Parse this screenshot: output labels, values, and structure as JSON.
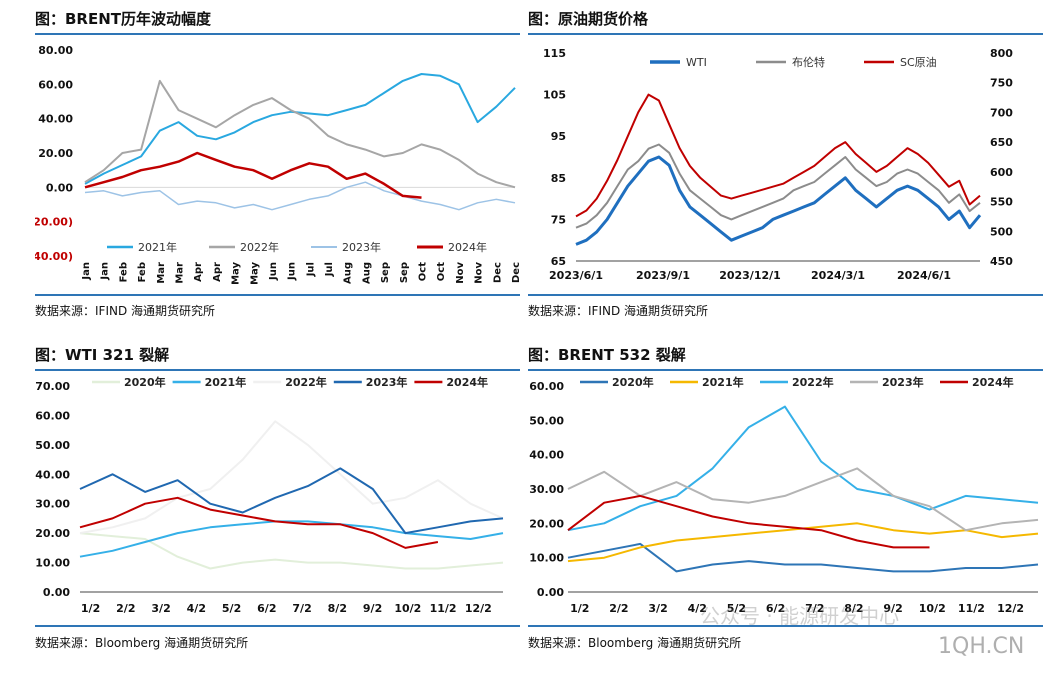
{
  "panels": [
    {
      "title": "图：BRENT历年波动幅度",
      "source": "数据来源：IFIND    海通期货研究所",
      "chart_data": {
        "type": "line",
        "ylim": [
          -40,
          80
        ],
        "y_ticks": [
          "80.00",
          "60.00",
          "40.00",
          "20.00",
          "0.00",
          "(20.00)",
          "(40.00)"
        ],
        "negative_tick_color": "#c00000",
        "x_ticks": [
          "Jan",
          "Jan",
          "Feb",
          "Feb",
          "Mar",
          "Mar",
          "Apr",
          "Apr",
          "May",
          "May",
          "Jun",
          "Jun",
          "Jul",
          "Jul",
          "Aug",
          "Aug",
          "Sep",
          "Sep",
          "Oct",
          "Oct",
          "Nov",
          "Nov",
          "Dec",
          "Dec"
        ],
        "legend_position": "bottom-inside",
        "series": [
          {
            "name": "2021年",
            "color": "#29a8e0",
            "width": 2,
            "values": [
              2,
              8,
              13,
              18,
              33,
              38,
              30,
              28,
              32,
              38,
              42,
              44,
              43,
              42,
              45,
              48,
              55,
              62,
              66,
              65,
              60,
              38,
              47,
              58
            ]
          },
          {
            "name": "2022年",
            "color": "#a6a6a6",
            "width": 2,
            "values": [
              3,
              10,
              20,
              22,
              62,
              45,
              40,
              35,
              42,
              48,
              52,
              45,
              40,
              30,
              25,
              22,
              18,
              20,
              25,
              22,
              16,
              8,
              3,
              0
            ]
          },
          {
            "name": "2023年",
            "color": "#9dc3e6",
            "width": 1.5,
            "values": [
              -3,
              -2,
              -5,
              -3,
              -2,
              -10,
              -8,
              -9,
              -12,
              -10,
              -13,
              -10,
              -7,
              -5,
              0,
              3,
              -2,
              -5,
              -8,
              -10,
              -13,
              -9,
              -7,
              -9
            ]
          },
          {
            "name": "2024年",
            "color": "#c00000",
            "width": 2.5,
            "values": [
              0,
              3,
              6,
              10,
              12,
              15,
              20,
              16,
              12,
              10,
              5,
              10,
              14,
              12,
              5,
              8,
              2,
              -5,
              -6
            ]
          }
        ]
      }
    },
    {
      "title": "图：原油期货价格",
      "source": "数据来源：IFIND    海通期货研究所",
      "chart_data": {
        "type": "line",
        "x_ticks": [
          "2023/6/1",
          "2023/9/1",
          "2023/12/1",
          "2024/3/1",
          "2024/6/1"
        ],
        "ylim_left": [
          65,
          115
        ],
        "y_ticks_left": [
          "115",
          "105",
          "95",
          "85",
          "75",
          "65"
        ],
        "ylim_right": [
          450,
          800
        ],
        "y_ticks_right": [
          "800",
          "750",
          "700",
          "650",
          "600",
          "550",
          "500",
          "450"
        ],
        "legend_position": "top",
        "series": [
          {
            "name": "WTI",
            "color": "#1f6fbf",
            "width": 3,
            "axis": "left",
            "values": [
              69,
              70,
              72,
              75,
              79,
              83,
              86,
              89,
              90,
              88,
              82,
              78,
              76,
              74,
              72,
              70,
              71,
              72,
              73,
              75,
              76,
              77,
              78,
              79,
              81,
              83,
              85,
              82,
              80,
              78,
              80,
              82,
              83,
              82,
              80,
              78,
              75,
              77,
              73,
              76
            ]
          },
          {
            "name": "布伦特",
            "color": "#8c8c8c",
            "width": 2,
            "axis": "left",
            "values": [
              73,
              74,
              76,
              79,
              83,
              87,
              89,
              92,
              93,
              91,
              86,
              82,
              80,
              78,
              76,
              75,
              76,
              77,
              78,
              79,
              80,
              82,
              83,
              84,
              86,
              88,
              90,
              87,
              85,
              83,
              84,
              86,
              87,
              86,
              84,
              82,
              79,
              81,
              77,
              79
            ]
          },
          {
            "name": "SC原油",
            "color": "#c00000",
            "width": 2,
            "axis": "right",
            "values": [
              525,
              535,
              555,
              585,
              620,
              660,
              700,
              730,
              720,
              680,
              640,
              610,
              590,
              575,
              560,
              555,
              560,
              565,
              570,
              575,
              580,
              590,
              600,
              610,
              625,
              640,
              650,
              630,
              615,
              600,
              610,
              625,
              640,
              630,
              615,
              595,
              575,
              585,
              545,
              560
            ]
          }
        ]
      }
    },
    {
      "title": "图：WTI 321 裂解",
      "source": "数据来源：Bloomberg    海通期货研究所",
      "chart_data": {
        "type": "line",
        "ylim": [
          0,
          70
        ],
        "y_ticks": [
          "70.00",
          "60.00",
          "50.00",
          "40.00",
          "30.00",
          "20.00",
          "10.00",
          "0.00"
        ],
        "x_ticks": [
          "1/2",
          "2/2",
          "3/2",
          "4/2",
          "5/2",
          "6/2",
          "7/2",
          "8/2",
          "9/2",
          "10/2",
          "11/2",
          "12/2"
        ],
        "legend_position": "top",
        "series": [
          {
            "name": "2020年",
            "color": "#e2efda",
            "width": 2,
            "values": [
              20,
              19,
              18,
              12,
              8,
              10,
              11,
              10,
              10,
              9,
              8,
              8,
              9,
              10
            ]
          },
          {
            "name": "2021年",
            "color": "#35b0e8",
            "width": 2,
            "values": [
              12,
              14,
              17,
              20,
              22,
              23,
              24,
              24,
              23,
              22,
              20,
              19,
              18,
              20
            ]
          },
          {
            "name": "2022年",
            "color": "#f0f0f0",
            "width": 2,
            "values": [
              20,
              22,
              25,
              32,
              35,
              45,
              58,
              50,
              40,
              30,
              32,
              38,
              30,
              25
            ]
          },
          {
            "name": "2023年",
            "color": "#2068b0",
            "width": 2,
            "values": [
              35,
              40,
              34,
              38,
              30,
              27,
              32,
              36,
              42,
              35,
              20,
              22,
              24,
              25
            ]
          },
          {
            "name": "2024年",
            "color": "#c00000",
            "width": 2,
            "values": [
              22,
              25,
              30,
              32,
              28,
              26,
              24,
              23,
              23,
              20,
              15,
              17
            ]
          }
        ]
      }
    },
    {
      "title": "图：BRENT 532 裂解",
      "source": "数据来源：Bloomberg    海通期货研究所",
      "chart_data": {
        "type": "line",
        "ylim": [
          0,
          60
        ],
        "y_ticks": [
          "60.00",
          "50.00",
          "40.00",
          "30.00",
          "20.00",
          "10.00",
          "0.00"
        ],
        "x_ticks": [
          "1/2",
          "2/2",
          "3/2",
          "4/2",
          "5/2",
          "6/2",
          "7/2",
          "8/2",
          "9/2",
          "10/2",
          "11/2",
          "12/2"
        ],
        "legend_position": "top",
        "series": [
          {
            "name": "2020年",
            "color": "#2e75b6",
            "width": 2,
            "values": [
              10,
              12,
              14,
              6,
              8,
              9,
              8,
              8,
              7,
              6,
              6,
              7,
              7,
              8
            ]
          },
          {
            "name": "2021年",
            "color": "#f5b800",
            "width": 2,
            "values": [
              9,
              10,
              13,
              15,
              16,
              17,
              18,
              19,
              20,
              18,
              17,
              18,
              16,
              17
            ]
          },
          {
            "name": "2022年",
            "color": "#35b0e8",
            "width": 2,
            "values": [
              18,
              20,
              25,
              28,
              36,
              48,
              54,
              38,
              30,
              28,
              24,
              28,
              27,
              26
            ]
          },
          {
            "name": "2023年",
            "color": "#b4b4b4",
            "width": 2,
            "values": [
              30,
              35,
              28,
              32,
              27,
              26,
              28,
              32,
              36,
              28,
              25,
              18,
              20,
              21
            ]
          },
          {
            "name": "2024年",
            "color": "#c00000",
            "width": 2,
            "values": [
              18,
              26,
              28,
              25,
              22,
              20,
              19,
              18,
              15,
              13,
              13
            ]
          }
        ]
      }
    }
  ],
  "watermark": {
    "wechat_text": "公众号 · 能源研发中心",
    "site_text": "1QH.CN"
  }
}
